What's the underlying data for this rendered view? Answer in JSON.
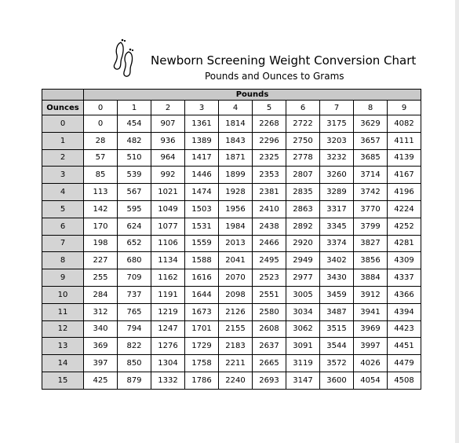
{
  "header": {
    "title": "Newborn Screening Weight Conversion Chart",
    "subtitle": "Pounds and Ounces to Grams",
    "logo_icon": "footprints-icon"
  },
  "table": {
    "pounds_label": "Pounds",
    "ounces_label": "Ounces",
    "pound_columns": [
      "0",
      "1",
      "2",
      "3",
      "4",
      "5",
      "6",
      "7",
      "8",
      "9"
    ],
    "rows": [
      {
        "ounces": "0",
        "grams": [
          "0",
          "454",
          "907",
          "1361",
          "1814",
          "2268",
          "2722",
          "3175",
          "3629",
          "4082"
        ]
      },
      {
        "ounces": "1",
        "grams": [
          "28",
          "482",
          "936",
          "1389",
          "1843",
          "2296",
          "2750",
          "3203",
          "3657",
          "4111"
        ]
      },
      {
        "ounces": "2",
        "grams": [
          "57",
          "510",
          "964",
          "1417",
          "1871",
          "2325",
          "2778",
          "3232",
          "3685",
          "4139"
        ]
      },
      {
        "ounces": "3",
        "grams": [
          "85",
          "539",
          "992",
          "1446",
          "1899",
          "2353",
          "2807",
          "3260",
          "3714",
          "4167"
        ]
      },
      {
        "ounces": "4",
        "grams": [
          "113",
          "567",
          "1021",
          "1474",
          "1928",
          "2381",
          "2835",
          "3289",
          "3742",
          "4196"
        ]
      },
      {
        "ounces": "5",
        "grams": [
          "142",
          "595",
          "1049",
          "1503",
          "1956",
          "2410",
          "2863",
          "3317",
          "3770",
          "4224"
        ]
      },
      {
        "ounces": "6",
        "grams": [
          "170",
          "624",
          "1077",
          "1531",
          "1984",
          "2438",
          "2892",
          "3345",
          "3799",
          "4252"
        ]
      },
      {
        "ounces": "7",
        "grams": [
          "198",
          "652",
          "1106",
          "1559",
          "2013",
          "2466",
          "2920",
          "3374",
          "3827",
          "4281"
        ]
      },
      {
        "ounces": "8",
        "grams": [
          "227",
          "680",
          "1134",
          "1588",
          "2041",
          "2495",
          "2949",
          "3402",
          "3856",
          "4309"
        ]
      },
      {
        "ounces": "9",
        "grams": [
          "255",
          "709",
          "1162",
          "1616",
          "2070",
          "2523",
          "2977",
          "3430",
          "3884",
          "4337"
        ]
      },
      {
        "ounces": "10",
        "grams": [
          "284",
          "737",
          "1191",
          "1644",
          "2098",
          "2551",
          "3005",
          "3459",
          "3912",
          "4366"
        ]
      },
      {
        "ounces": "11",
        "grams": [
          "312",
          "765",
          "1219",
          "1673",
          "2126",
          "2580",
          "3034",
          "3487",
          "3941",
          "4394"
        ]
      },
      {
        "ounces": "12",
        "grams": [
          "340",
          "794",
          "1247",
          "1701",
          "2155",
          "2608",
          "3062",
          "3515",
          "3969",
          "4423"
        ]
      },
      {
        "ounces": "13",
        "grams": [
          "369",
          "822",
          "1276",
          "1729",
          "2183",
          "2637",
          "3091",
          "3544",
          "3997",
          "4451"
        ]
      },
      {
        "ounces": "14",
        "grams": [
          "397",
          "850",
          "1304",
          "1758",
          "2211",
          "2665",
          "3119",
          "3572",
          "4026",
          "4479"
        ]
      },
      {
        "ounces": "15",
        "grams": [
          "425",
          "879",
          "1332",
          "1786",
          "2240",
          "2693",
          "3147",
          "3600",
          "4054",
          "4508"
        ]
      }
    ]
  }
}
